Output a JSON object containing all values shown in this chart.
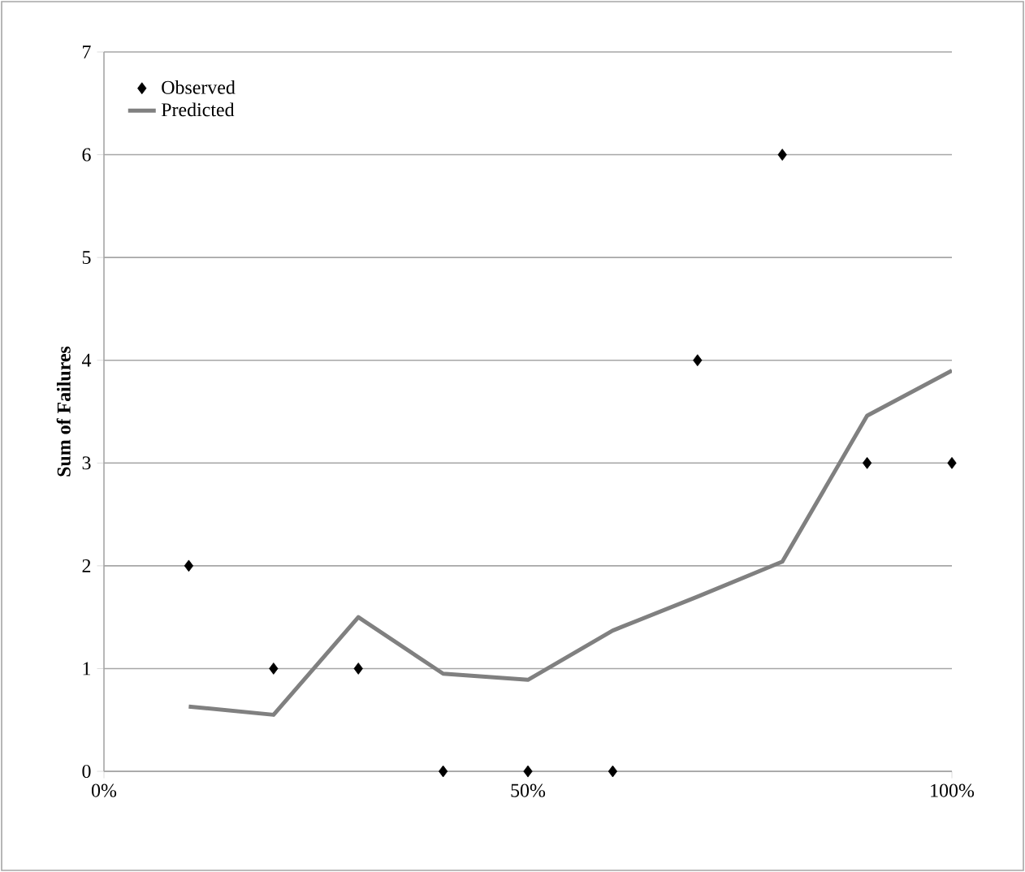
{
  "chart_data": {
    "type": "scatter",
    "ylabel": "Sum of Failures",
    "x": [
      0.1,
      0.2,
      0.3,
      0.4,
      0.5,
      0.6,
      0.7,
      0.8,
      0.9,
      1.0
    ],
    "series": [
      {
        "name": "Observed",
        "color": "#000000",
        "marker": "diamond",
        "values": [
          2,
          1,
          1,
          0,
          0,
          0,
          4,
          6,
          3,
          3
        ]
      },
      {
        "name": "Predicted",
        "type": "line",
        "color": "#808080",
        "marker": "none",
        "line_style": "solid",
        "values": [
          0.63,
          0.55,
          1.5,
          0.95,
          0.89,
          1.37,
          1.7,
          2.04,
          3.46,
          3.9
        ]
      }
    ],
    "xlim": [
      0,
      1
    ],
    "xticks": [
      {
        "value": 0,
        "label": "0%"
      },
      {
        "value": 0.5,
        "label": "50%"
      },
      {
        "value": 1,
        "label": "100%"
      }
    ],
    "ylim": [
      0,
      7
    ],
    "yticks": [
      0,
      1,
      2,
      3,
      4,
      5,
      6,
      7
    ],
    "grid": "y",
    "legend": "top left"
  }
}
